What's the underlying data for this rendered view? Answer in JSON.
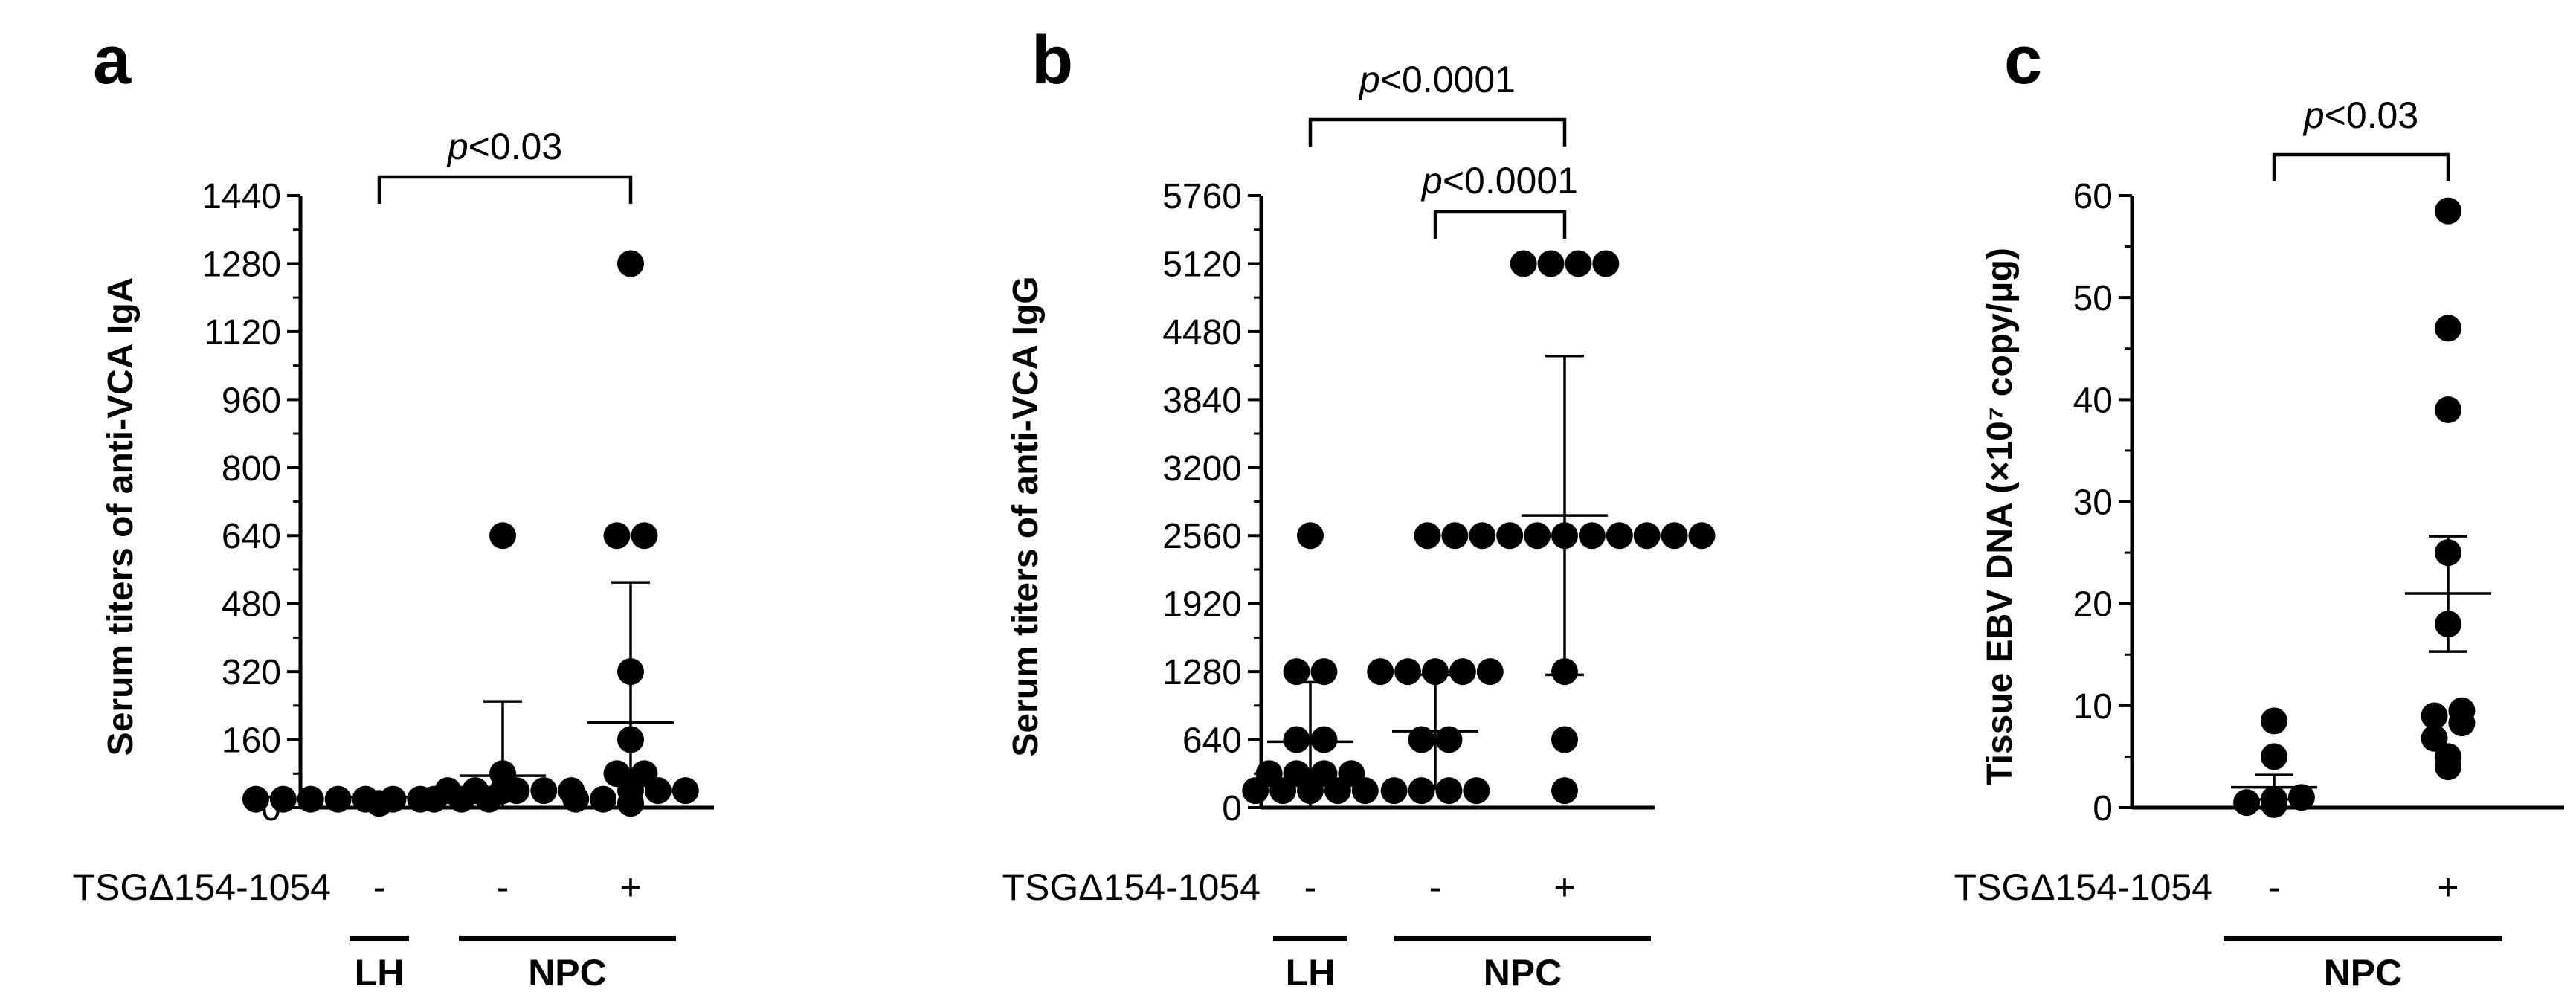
{
  "panels": [
    {
      "letter": "a",
      "ylabel": "Serum titers of anti-VCA IgA",
      "treatment_label": "TSGΔ154-1054",
      "treatment_marks": [
        "-",
        "-",
        "+"
      ],
      "group_labels": [
        "LH",
        "NPC"
      ],
      "comparisons": [
        {
          "label": "p<0.03",
          "from": 0,
          "to": 2
        }
      ]
    },
    {
      "letter": "b",
      "ylabel": "Serum titers of anti-VCA IgG",
      "treatment_label": "TSGΔ154-1054",
      "treatment_marks": [
        "-",
        "-",
        "+"
      ],
      "group_labels": [
        "LH",
        "NPC"
      ],
      "comparisons": [
        {
          "label": "p<0.0001",
          "from": 0,
          "to": 2
        },
        {
          "label": "p<0.0001",
          "from": 1,
          "to": 2
        }
      ]
    },
    {
      "letter": "c",
      "ylabel": "Tissue EBV DNA (×10⁷ copy/μg)",
      "treatment_label": "TSGΔ154-1054",
      "treatment_marks": [
        "-",
        "+"
      ],
      "group_labels": [
        "NPC"
      ],
      "comparisons": [
        {
          "label": "p<0.03",
          "from": 0,
          "to": 1
        }
      ]
    }
  ],
  "chart_data": [
    {
      "type": "scatter",
      "panel": "a",
      "ylabel": "Serum titers of anti-VCA IgA",
      "ylim": [
        0,
        1440
      ],
      "yticks": [
        0,
        160,
        320,
        480,
        640,
        800,
        960,
        1120,
        1280,
        1440
      ],
      "categories": [
        "LH -",
        "NPC -",
        "NPC +"
      ],
      "series": [
        {
          "values": [
            10,
            20,
            20,
            20,
            20,
            20,
            20,
            20,
            40,
            40,
            40
          ]
        },
        {
          "values": [
            20,
            20,
            20,
            40,
            40,
            40,
            80,
            640
          ]
        },
        {
          "values": [
            10,
            20,
            20,
            40,
            40,
            40,
            80,
            80,
            160,
            320,
            640,
            640,
            1280
          ]
        }
      ],
      "summary": [
        {
          "mean": 25,
          "lower": 0,
          "upper": 35
        },
        {
          "mean": 75,
          "lower": 0,
          "upper": 250
        },
        {
          "mean": 200,
          "lower": 0,
          "upper": 530
        }
      ]
    },
    {
      "type": "scatter",
      "panel": "b",
      "ylabel": "Serum titers of anti-VCA IgG",
      "ylim": [
        0,
        5760
      ],
      "yticks": [
        0,
        640,
        1280,
        1920,
        2560,
        3200,
        3840,
        4480,
        5120,
        5760
      ],
      "categories": [
        "LH -",
        "NPC -",
        "NPC +"
      ],
      "series": [
        {
          "values": [
            160,
            160,
            160,
            160,
            160,
            320,
            320,
            320,
            320,
            640,
            640,
            1280,
            1280,
            2560
          ]
        },
        {
          "values": [
            160,
            160,
            160,
            160,
            640,
            640,
            1280,
            1280,
            1280,
            1280,
            1280
          ]
        },
        {
          "values": [
            160,
            640,
            1280,
            2560,
            2560,
            2560,
            2560,
            2560,
            2560,
            2560,
            2560,
            2560,
            2560,
            2560,
            5120,
            5120,
            5120,
            5120
          ]
        }
      ],
      "summary": [
        {
          "mean": 620,
          "lower": 0,
          "upper": 1180
        },
        {
          "mean": 720,
          "lower": 180,
          "upper": 1250
        },
        {
          "mean": 2750,
          "lower": 1250,
          "upper": 4250
        }
      ]
    },
    {
      "type": "scatter",
      "panel": "c",
      "ylabel": "Tissue EBV DNA (×10⁷ copy/μg)",
      "ylim": [
        0,
        60
      ],
      "yticks": [
        0,
        10,
        20,
        30,
        40,
        50,
        60
      ],
      "categories": [
        "NPC -",
        "NPC +"
      ],
      "series": [
        {
          "values": [
            0.3,
            0.5,
            0.8,
            1.0,
            5.0,
            8.5
          ]
        },
        {
          "values": [
            4.0,
            5.0,
            6.8,
            8.3,
            9.0,
            9.5,
            18.0,
            25.0,
            39.0,
            47.0,
            58.5
          ]
        }
      ],
      "summary": [
        {
          "mean": 2.0,
          "lower": 0.8,
          "upper": 3.2
        },
        {
          "mean": 21.0,
          "lower": 15.3,
          "upper": 26.6
        }
      ]
    }
  ]
}
